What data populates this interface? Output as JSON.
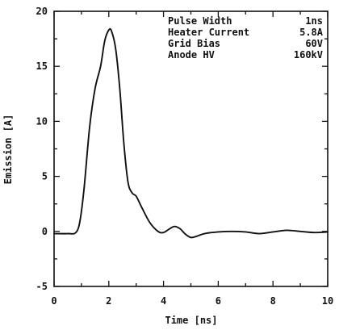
{
  "chart_data": {
    "type": "line",
    "title": "",
    "xlabel": "Time [ns]",
    "ylabel": "Emission [A]",
    "xlim": [
      0,
      10
    ],
    "ylim": [
      -5,
      20
    ],
    "x_ticks": [
      0,
      2,
      4,
      6,
      8,
      10
    ],
    "y_ticks": [
      -5,
      0,
      5,
      10,
      15,
      20
    ],
    "grid": false,
    "line_color": "#111111",
    "series": [
      {
        "x": [
          0,
          0.5,
          0.8,
          0.95,
          1.1,
          1.3,
          1.5,
          1.7,
          1.85,
          2.0,
          2.1,
          2.25,
          2.4,
          2.55,
          2.7,
          2.85,
          3.0,
          3.2,
          3.5,
          3.8,
          4.0,
          4.2,
          4.4,
          4.6,
          4.8,
          5.0,
          5.2,
          5.5,
          6.0,
          6.5,
          7.0,
          7.5,
          8.0,
          8.5,
          9.0,
          9.5,
          10.0
        ],
        "y": [
          -0.2,
          -0.2,
          -0.1,
          1.0,
          4.0,
          9.5,
          13.0,
          15.0,
          17.3,
          18.3,
          18.2,
          16.6,
          13.0,
          8.0,
          4.5,
          3.5,
          3.2,
          2.2,
          0.8,
          0.0,
          -0.1,
          0.2,
          0.45,
          0.25,
          -0.25,
          -0.55,
          -0.45,
          -0.2,
          -0.05,
          0.0,
          -0.05,
          -0.2,
          -0.05,
          0.1,
          0.0,
          -0.1,
          -0.05
        ]
      }
    ],
    "annotation_rows": [
      {
        "label": "Pulse Width",
        "value": "1ns"
      },
      {
        "label": "Heater Current",
        "value": "5.8A"
      },
      {
        "label": "Grid Bias",
        "value": "60V"
      },
      {
        "label": "Anode HV",
        "value": "160kV"
      }
    ]
  }
}
